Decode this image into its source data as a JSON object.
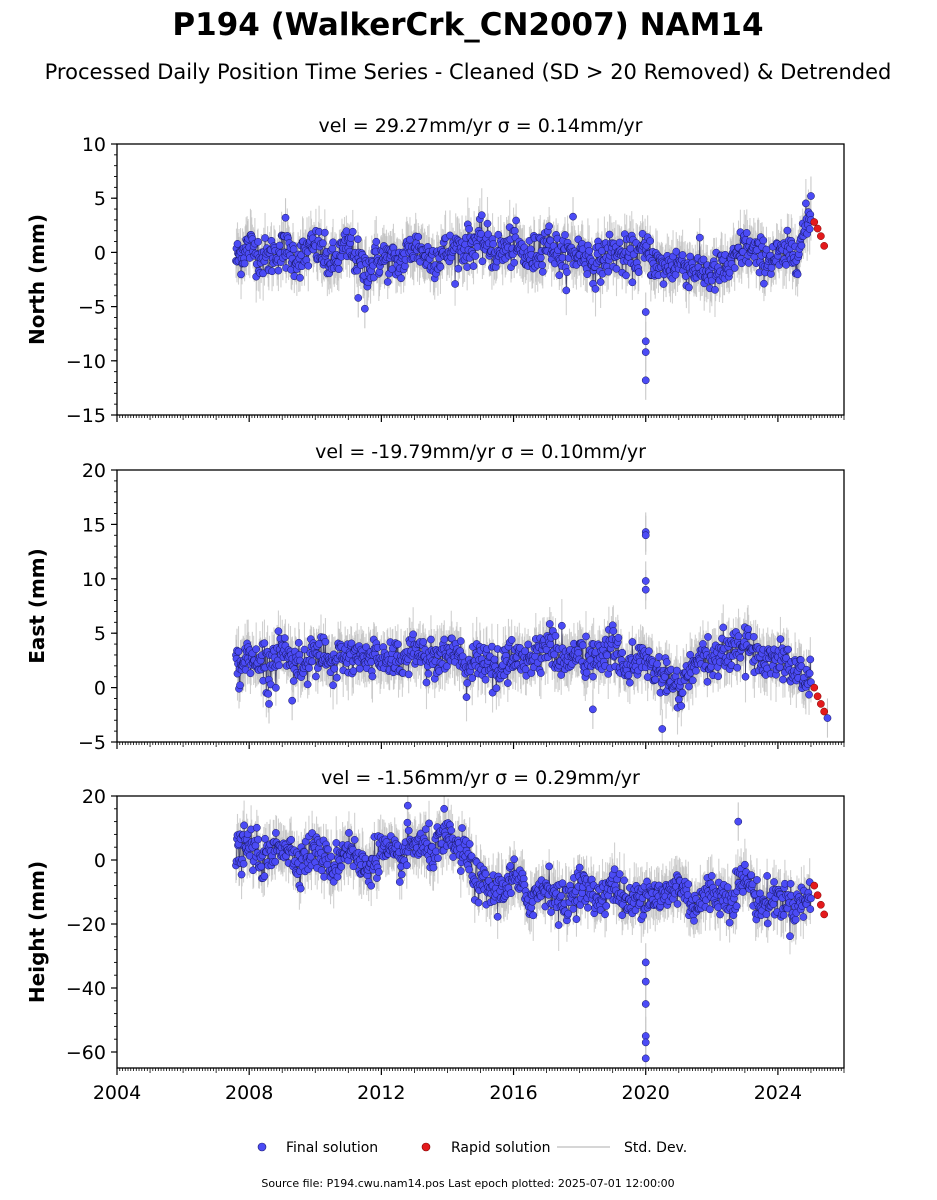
{
  "figure": {
    "title": "P194 (WalkerCrk_CN2007) NAM14",
    "subtitle": "Processed Daily Position Time Series - Cleaned (SD > 20 Removed) & Detrended",
    "footer": "Source file: P194.cwu.nam14.pos  Last epoch plotted: 2025-07-01 12:00:00"
  },
  "legend": {
    "placement": "bottom-center",
    "items": [
      {
        "label": "Final solution",
        "color": "#4b4bf5",
        "kind": "marker"
      },
      {
        "label": "Rapid solution",
        "color": "#e31a1c",
        "kind": "marker"
      },
      {
        "label": "Std. Dev.",
        "color": "#c8c8c8",
        "kind": "line"
      }
    ]
  },
  "chart_data": [
    {
      "type": "scatter",
      "title": "vel = 29.27mm/yr   σ = 0.14mm/yr",
      "ylabel": "North (mm)",
      "xlim": [
        2004,
        2026
      ],
      "ylim": [
        -15,
        10
      ],
      "yticks": [
        -15,
        -10,
        -5,
        0,
        5,
        10
      ],
      "xticks": [
        2004,
        2008,
        2012,
        2016,
        2020,
        2024
      ],
      "final_solution": {
        "x": [
          2007.6,
          2008.0,
          2008.5,
          2009.0,
          2009.5,
          2010.0,
          2010.5,
          2011.0,
          2011.5,
          2012.0,
          2012.5,
          2013.0,
          2013.5,
          2014.0,
          2014.5,
          2015.0,
          2015.5,
          2016.0,
          2016.5,
          2017.0,
          2017.5,
          2018.0,
          2018.5,
          2019.0,
          2019.5,
          2020.0,
          2020.5,
          2021.0,
          2021.5,
          2022.0,
          2022.5,
          2023.0,
          2023.5,
          2024.0,
          2024.5,
          2025.0
        ],
        "y": [
          -0.5,
          0.5,
          -0.5,
          0.2,
          -0.5,
          0.5,
          -1.0,
          0.5,
          -1.5,
          -0.5,
          -1.0,
          0.5,
          -0.5,
          0.0,
          0.5,
          1.0,
          0.0,
          0.5,
          -0.5,
          1.0,
          -0.5,
          0.0,
          -1.0,
          0.0,
          -0.5,
          0.0,
          -1.5,
          -1.0,
          -1.5,
          -2.0,
          -1.5,
          0.5,
          -0.5,
          -0.5,
          0.0,
          3.0
        ],
        "outliers": [
          [
            2009.1,
            3.2
          ],
          [
            2011.3,
            -4.2
          ],
          [
            2011.5,
            -5.2
          ],
          [
            2017.8,
            3.3
          ],
          [
            2020.0,
            -5.5
          ],
          [
            2020.0,
            -8.2
          ],
          [
            2020.0,
            -9.2
          ],
          [
            2020.0,
            -11.8
          ],
          [
            2025.0,
            5.2
          ]
        ]
      },
      "rapid_solution": {
        "x": [
          2025.1,
          2025.2,
          2025.3,
          2025.4
        ],
        "y": [
          2.8,
          2.2,
          1.5,
          0.6
        ]
      },
      "std_dev_typical": 1.5
    },
    {
      "type": "scatter",
      "title": "vel = -19.79mm/yr   σ = 0.10mm/yr",
      "ylabel": "East (mm)",
      "xlim": [
        2004,
        2026
      ],
      "ylim": [
        -5,
        20
      ],
      "yticks": [
        -5,
        0,
        5,
        10,
        15,
        20
      ],
      "xticks": [
        2004,
        2008,
        2012,
        2016,
        2020,
        2024
      ],
      "final_solution": {
        "x": [
          2007.6,
          2008.0,
          2008.5,
          2009.0,
          2009.5,
          2010.0,
          2010.5,
          2011.0,
          2011.5,
          2012.0,
          2012.5,
          2013.0,
          2013.5,
          2014.0,
          2014.5,
          2015.0,
          2015.5,
          2016.0,
          2016.5,
          2017.0,
          2017.5,
          2018.0,
          2018.5,
          2019.0,
          2019.5,
          2020.0,
          2020.5,
          2021.0,
          2021.5,
          2022.0,
          2022.5,
          2023.0,
          2023.5,
          2024.0,
          2024.5,
          2025.0
        ],
        "y": [
          1.5,
          3.0,
          2.0,
          3.5,
          2.0,
          3.5,
          2.0,
          3.0,
          2.5,
          3.0,
          2.5,
          3.5,
          2.5,
          3.5,
          2.0,
          2.5,
          1.5,
          3.0,
          2.5,
          4.0,
          2.5,
          3.0,
          2.5,
          3.5,
          2.0,
          2.5,
          1.0,
          0.0,
          2.0,
          2.5,
          3.5,
          4.0,
          2.5,
          3.0,
          1.5,
          0.5
        ],
        "outliers": [
          [
            2008.6,
            -1.5
          ],
          [
            2009.3,
            -1.2
          ],
          [
            2018.4,
            -2.0
          ],
          [
            2020.0,
            14.3
          ],
          [
            2020.0,
            14.0
          ],
          [
            2020.0,
            9.8
          ],
          [
            2020.0,
            9.0
          ],
          [
            2020.5,
            -3.8
          ],
          [
            2025.5,
            -2.8
          ]
        ]
      },
      "rapid_solution": {
        "x": [
          2025.1,
          2025.2,
          2025.3,
          2025.4
        ],
        "y": [
          0.0,
          -0.8,
          -1.5,
          -2.2
        ]
      },
      "std_dev_typical": 1.5
    },
    {
      "type": "scatter",
      "title": "vel = -1.56mm/yr   σ = 0.29mm/yr",
      "ylabel": "Height (mm)",
      "xlim": [
        2004,
        2026
      ],
      "ylim": [
        -65,
        20
      ],
      "yticks": [
        -60,
        -40,
        -20,
        0,
        20
      ],
      "xticks": [
        2004,
        2008,
        2012,
        2016,
        2020,
        2024
      ],
      "xtick_labels": [
        "2004",
        "2008",
        "2012",
        "2016",
        "2020",
        "2024"
      ],
      "final_solution": {
        "x": [
          2007.6,
          2008.0,
          2008.5,
          2009.0,
          2009.5,
          2010.0,
          2010.5,
          2011.0,
          2011.5,
          2012.0,
          2012.5,
          2013.0,
          2013.5,
          2014.0,
          2014.5,
          2015.0,
          2015.5,
          2016.0,
          2016.5,
          2017.0,
          2017.5,
          2018.0,
          2018.5,
          2019.0,
          2019.5,
          2020.0,
          2020.5,
          2021.0,
          2021.5,
          2022.0,
          2022.5,
          2023.0,
          2023.5,
          2024.0,
          2024.5,
          2025.0
        ],
        "y": [
          2.0,
          4.0,
          0.0,
          5.0,
          0.0,
          3.0,
          -2.0,
          4.0,
          -3.0,
          3.0,
          0.0,
          5.0,
          3.0,
          6.0,
          2.0,
          -8.0,
          -10.0,
          -6.0,
          -12.0,
          -8.0,
          -14.0,
          -8.0,
          -12.0,
          -8.0,
          -14.0,
          -10.0,
          -12.0,
          -8.0,
          -14.0,
          -10.0,
          -12.0,
          -6.0,
          -14.0,
          -12.0,
          -14.0,
          -12.0
        ],
        "outliers": [
          [
            2012.8,
            17.0
          ],
          [
            2013.9,
            16.0
          ],
          [
            2020.0,
            -32.0
          ],
          [
            2020.0,
            -38.0
          ],
          [
            2020.0,
            -45.0
          ],
          [
            2020.0,
            -55.0
          ],
          [
            2020.0,
            -57.0
          ],
          [
            2020.0,
            -62.0
          ],
          [
            2022.8,
            12.0
          ]
        ]
      },
      "rapid_solution": {
        "x": [
          2025.1,
          2025.2,
          2025.3,
          2025.4
        ],
        "y": [
          -8.0,
          -11.0,
          -14.0,
          -17.0
        ]
      },
      "std_dev_typical": 5.0
    }
  ]
}
